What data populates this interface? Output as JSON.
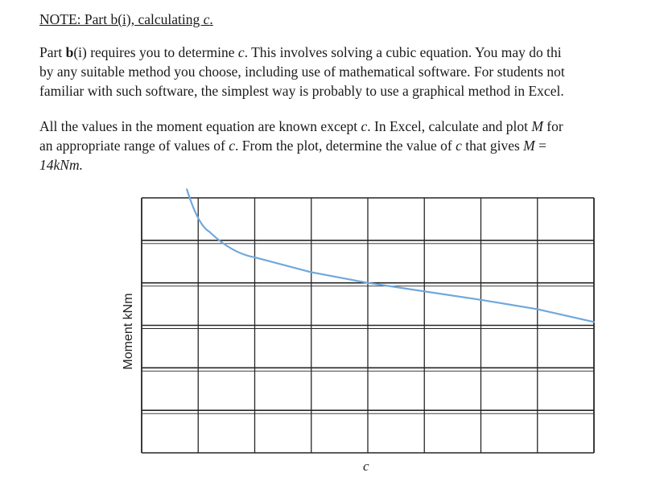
{
  "note": {
    "title_prefix": "NOTE: Part b(i), calculating ",
    "title_var": "c",
    "title_suffix": "."
  },
  "paragraph1": {
    "line1_a": "Part ",
    "line1_bold": "b",
    "line1_b": "(i) requires you to determine ",
    "line1_var": "c",
    "line1_c": ". This involves solving a cubic equation. You may do thi",
    "line2": "by any suitable method you choose, including use of mathematical software. For students not",
    "line3": "familiar with such software, the simplest way is probably to use a graphical method in Excel."
  },
  "paragraph2": {
    "line1_a": "All the values in the moment equation are known except ",
    "line1_var": "c",
    "line1_b": ". In Excel, calculate and plot ",
    "line1_var2": "M",
    "line1_c": " for",
    "line2_a": "an appropriate range of values of ",
    "line2_var": "c",
    "line2_b": ". From the plot, determine the value of ",
    "line2_var2": "c",
    "line2_c": " that gives ",
    "line2_var3": "M",
    "line2_d": " =",
    "line3": "14kNm."
  },
  "chart_data": {
    "type": "line",
    "xlabel": "c",
    "ylabel": "Moment kNm",
    "grid": true,
    "grid_cols": 8,
    "grid_rows": 6,
    "line_color": "#6fa8dc",
    "series": [
      {
        "points": [
          [
            0.8,
            6.2
          ],
          [
            1.2,
            5.2
          ],
          [
            2.0,
            4.6
          ],
          [
            3.0,
            4.25
          ],
          [
            4.0,
            4.0
          ],
          [
            5.0,
            3.8
          ],
          [
            6.0,
            3.6
          ],
          [
            7.0,
            3.38
          ],
          [
            8.0,
            3.08
          ]
        ]
      }
    ]
  }
}
